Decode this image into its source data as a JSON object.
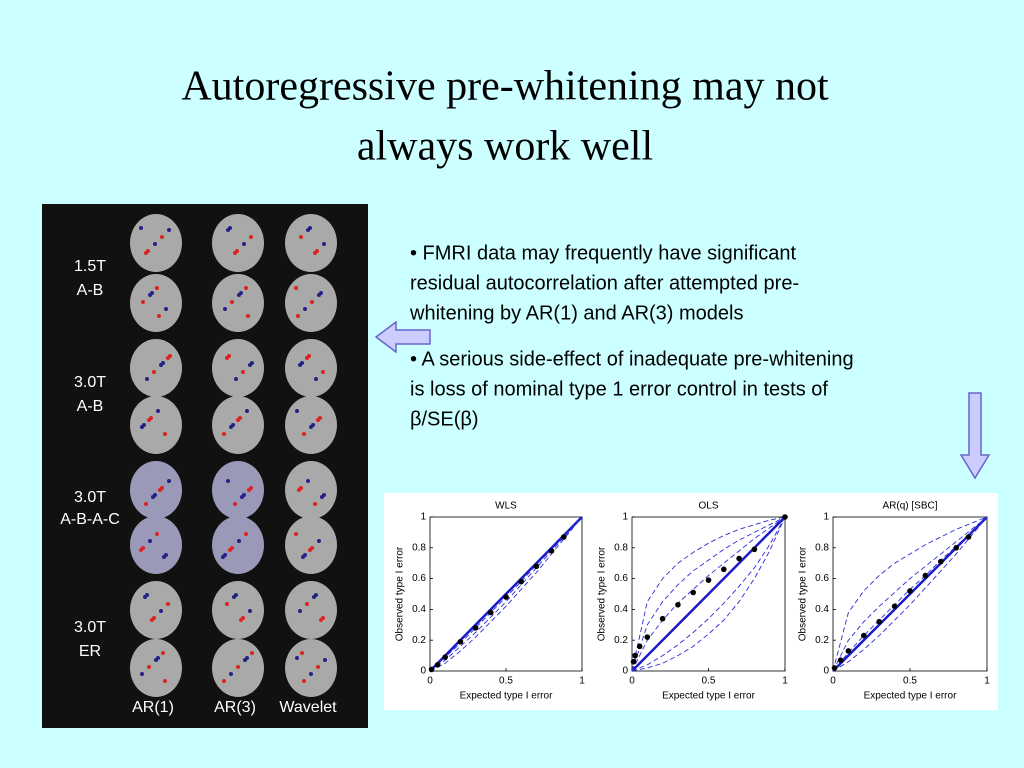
{
  "slide": {
    "title": [
      "Autoregressive pre-whitening may not",
      "always work well"
    ],
    "bullets": [
      [
        "• FMRI data may frequently have significant",
        "residual autocorrelation after attempted pre-",
        "whitening by AR(1) and AR(3) models"
      ],
      [
        "• A serious side-effect of inadequate pre-whitening",
        "is loss of nominal type 1 error control in tests of",
        "β/SE(β)"
      ]
    ],
    "image_labels": {
      "rows": [
        [
          "1.5T",
          "A-B"
        ],
        [
          "3.0T",
          "A-B"
        ],
        [
          "3.0T",
          "A-B-A-C"
        ],
        [
          "3.0T",
          "ER"
        ]
      ],
      "columns": [
        "AR(1)",
        "AR(3)",
        "Wavelet"
      ]
    },
    "charts": [
      {
        "type": "line",
        "title": "WLS",
        "xlabel": "Expected type I error",
        "ylabel": "Observed type I error",
        "xlim": [
          0,
          1
        ],
        "ylim": [
          0,
          1
        ],
        "xticks": [
          0,
          0.5,
          1
        ],
        "yticks": [
          0,
          0.2,
          0.4,
          0.6,
          0.8,
          1
        ],
        "x": [
          0,
          0.1,
          0.2,
          0.3,
          0.4,
          0.5,
          0.6,
          0.7,
          0.8,
          0.9,
          1
        ],
        "series": [
          {
            "color": "#2b2bd6",
            "values": [
              0,
              0.07,
              0.16,
              0.25,
              0.35,
              0.45,
              0.56,
              0.67,
              0.78,
              0.89,
              1
            ]
          },
          {
            "color": "#2b2bd6",
            "values": [
              0,
              0.05,
              0.13,
              0.22,
              0.32,
              0.42,
              0.53,
              0.64,
              0.76,
              0.88,
              1
            ]
          },
          {
            "color": "#2b2bd6",
            "values": [
              0,
              0.09,
              0.18,
              0.28,
              0.38,
              0.48,
              0.58,
              0.69,
              0.79,
              0.9,
              1
            ]
          }
        ],
        "points": {
          "x": [
            0.01,
            0.05,
            0.1,
            0.2,
            0.3,
            0.4,
            0.5,
            0.6,
            0.7,
            0.8,
            0.88
          ],
          "y": [
            0.01,
            0.04,
            0.09,
            0.19,
            0.28,
            0.38,
            0.48,
            0.58,
            0.68,
            0.78,
            0.87
          ]
        }
      },
      {
        "type": "line",
        "title": "OLS",
        "xlabel": "Expected type I error",
        "ylabel": "Observed type I error",
        "xlim": [
          0,
          1
        ],
        "ylim": [
          0,
          1
        ],
        "xticks": [
          0,
          0.5,
          1
        ],
        "yticks": [
          0,
          0.2,
          0.4,
          0.6,
          0.8,
          1
        ],
        "x": [
          0,
          0.1,
          0.2,
          0.3,
          0.4,
          0.5,
          0.6,
          0.7,
          0.8,
          0.9,
          1
        ],
        "series": [
          {
            "color": "#2b2bd6",
            "values": [
              0,
              0.45,
              0.6,
              0.7,
              0.77,
              0.83,
              0.88,
              0.92,
              0.95,
              0.98,
              1
            ]
          },
          {
            "color": "#2b2bd6",
            "values": [
              0,
              0.3,
              0.45,
              0.56,
              0.65,
              0.72,
              0.79,
              0.85,
              0.9,
              0.95,
              1
            ]
          },
          {
            "color": "#2b2bd6",
            "values": [
              0,
              0.2,
              0.33,
              0.44,
              0.53,
              0.62,
              0.7,
              0.78,
              0.86,
              0.93,
              1
            ]
          },
          {
            "color": "#2b2bd6",
            "values": [
              0,
              0.04,
              0.1,
              0.17,
              0.25,
              0.34,
              0.44,
              0.55,
              0.67,
              0.82,
              1
            ]
          },
          {
            "color": "#2b2bd6",
            "values": [
              0,
              0.02,
              0.05,
              0.1,
              0.16,
              0.24,
              0.33,
              0.45,
              0.6,
              0.78,
              1
            ]
          }
        ],
        "points": {
          "x": [
            0.01,
            0.02,
            0.05,
            0.1,
            0.2,
            0.3,
            0.4,
            0.5,
            0.6,
            0.7,
            0.8,
            1
          ],
          "y": [
            0.06,
            0.1,
            0.16,
            0.22,
            0.34,
            0.43,
            0.51,
            0.59,
            0.66,
            0.73,
            0.79,
            1
          ]
        }
      },
      {
        "type": "line",
        "title": "AR(q) [SBC]",
        "xlabel": "Expected type I error",
        "ylabel": "Observed type I error",
        "xlim": [
          0,
          1
        ],
        "ylim": [
          0,
          1
        ],
        "xticks": [
          0,
          0.5,
          1
        ],
        "yticks": [
          0,
          0.2,
          0.4,
          0.6,
          0.8,
          1
        ],
        "x": [
          0,
          0.1,
          0.2,
          0.3,
          0.4,
          0.5,
          0.6,
          0.7,
          0.8,
          0.9,
          1
        ],
        "series": [
          {
            "color": "#2b2bd6",
            "values": [
              0,
              0.38,
              0.52,
              0.62,
              0.7,
              0.76,
              0.82,
              0.87,
              0.92,
              0.96,
              1
            ]
          },
          {
            "color": "#2b2bd6",
            "values": [
              0,
              0.2,
              0.32,
              0.42,
              0.51,
              0.6,
              0.68,
              0.76,
              0.84,
              0.92,
              1
            ]
          },
          {
            "color": "#2b2bd6",
            "values": [
              0,
              0.12,
              0.23,
              0.33,
              0.43,
              0.53,
              0.62,
              0.72,
              0.81,
              0.9,
              1
            ]
          },
          {
            "color": "#2b2bd6",
            "values": [
              0,
              0.06,
              0.14,
              0.23,
              0.33,
              0.43,
              0.54,
              0.65,
              0.76,
              0.88,
              1
            ]
          }
        ],
        "points": {
          "x": [
            0.01,
            0.05,
            0.1,
            0.2,
            0.3,
            0.4,
            0.5,
            0.6,
            0.7,
            0.8,
            0.88
          ],
          "y": [
            0.02,
            0.07,
            0.13,
            0.23,
            0.32,
            0.42,
            0.52,
            0.62,
            0.71,
            0.8,
            0.87
          ]
        }
      }
    ]
  }
}
